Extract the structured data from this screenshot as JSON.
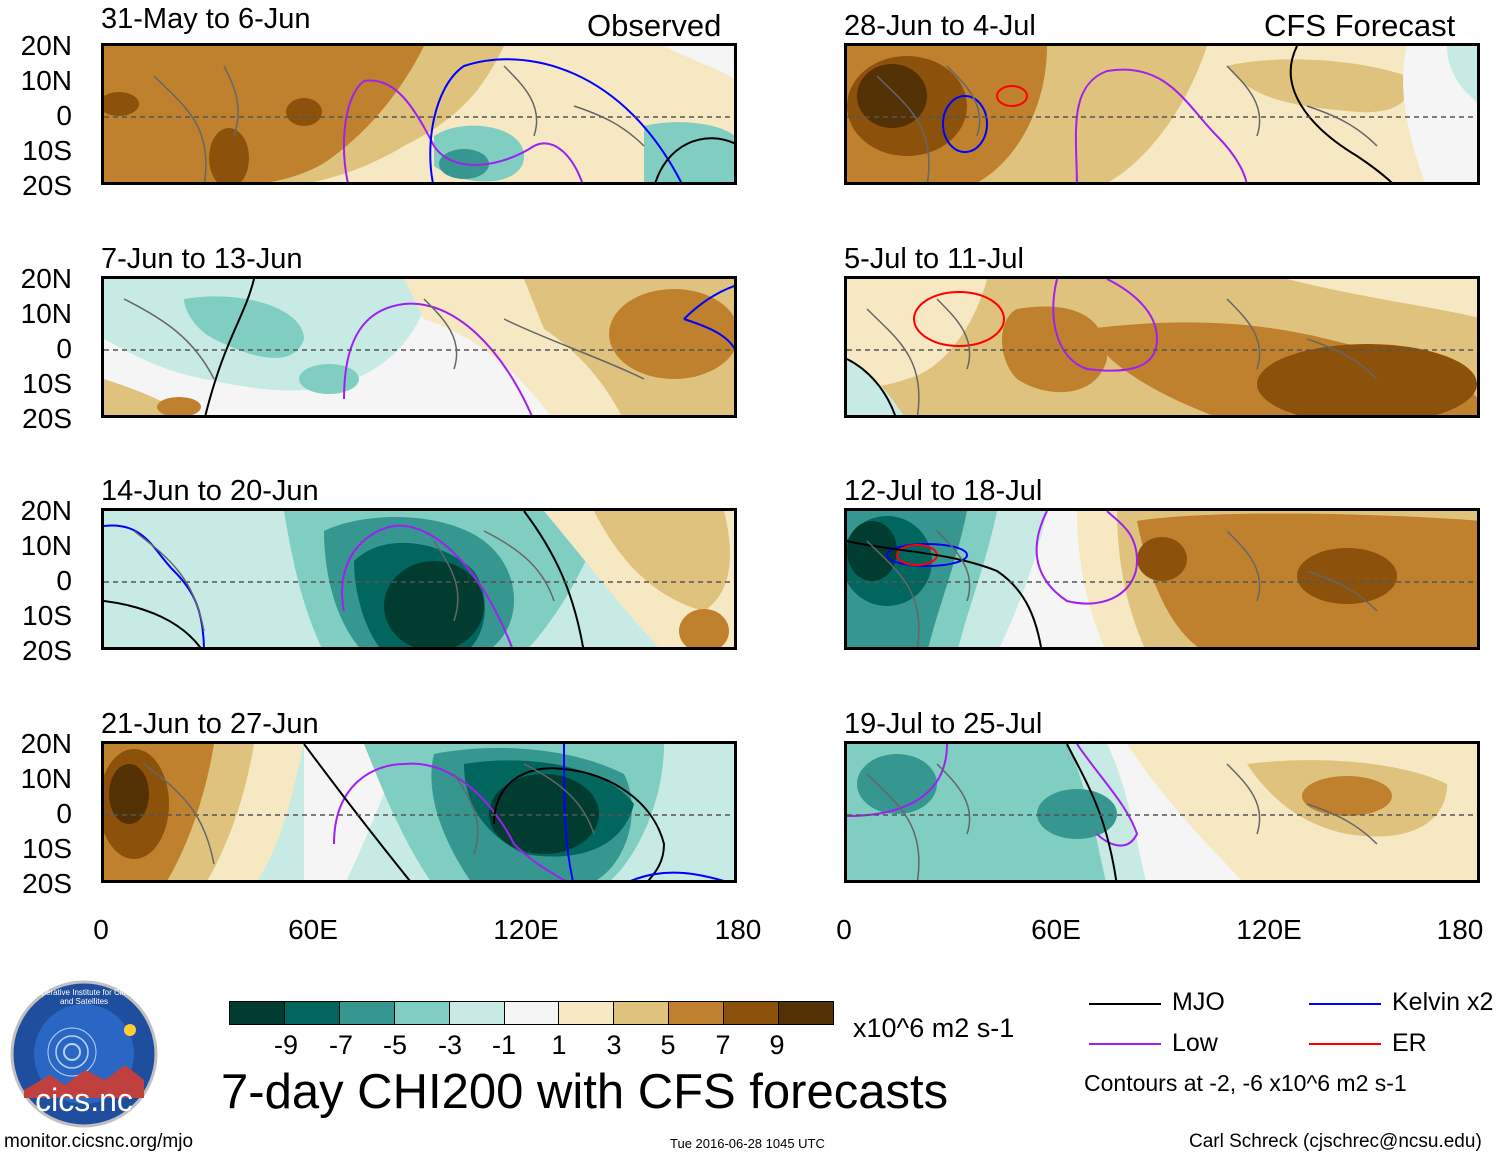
{
  "header": {
    "left_label": "Observed",
    "right_label": "CFS Forecast"
  },
  "panels": {
    "left": [
      "31-May to 6-Jun",
      "7-Jun to 13-Jun",
      "14-Jun to 20-Jun",
      "21-Jun to 27-Jun"
    ],
    "right": [
      "28-Jun to 4-Jul",
      "5-Jul to 11-Jul",
      "12-Jul to 18-Jul",
      "19-Jul to 25-Jul"
    ]
  },
  "axes": {
    "lat_labels": [
      "20N",
      "10N",
      "0",
      "10S",
      "20S"
    ],
    "lon_labels": [
      "0",
      "60E",
      "120E",
      "180"
    ]
  },
  "colorbar": {
    "labels": [
      "-9",
      "-7",
      "-5",
      "-3",
      "-1",
      "1",
      "3",
      "5",
      "7",
      "9"
    ],
    "units": "x10^6 m2 s-1",
    "colors": [
      "#003c30",
      "#01665e",
      "#35978f",
      "#80cdc1",
      "#c7eae5",
      "#f5f5f5",
      "#f6e8c3",
      "#dfc27d",
      "#bf812d",
      "#8c510a",
      "#543005"
    ]
  },
  "title": "7-day CHI200 with CFS forecasts",
  "legend": {
    "items": [
      {
        "label": "MJO",
        "color": "#000000"
      },
      {
        "label": "Kelvin x2",
        "color": "#0000ff"
      },
      {
        "label": "Low",
        "color": "#a020f0"
      },
      {
        "label": "ER",
        "color": "#ff0000"
      }
    ],
    "note": "Contours at -2, -6 x10^6 m2 s-1"
  },
  "logo": {
    "text": "cics.nc",
    "ring_text": "Cooperative Institute for Climate and Satellites"
  },
  "footer": {
    "left": "monitor.cicsnc.org/mjo",
    "center": "Tue 2016-06-28 1045 UTC",
    "right": "Carl Schreck (cjschrec@ncsu.edu)"
  }
}
